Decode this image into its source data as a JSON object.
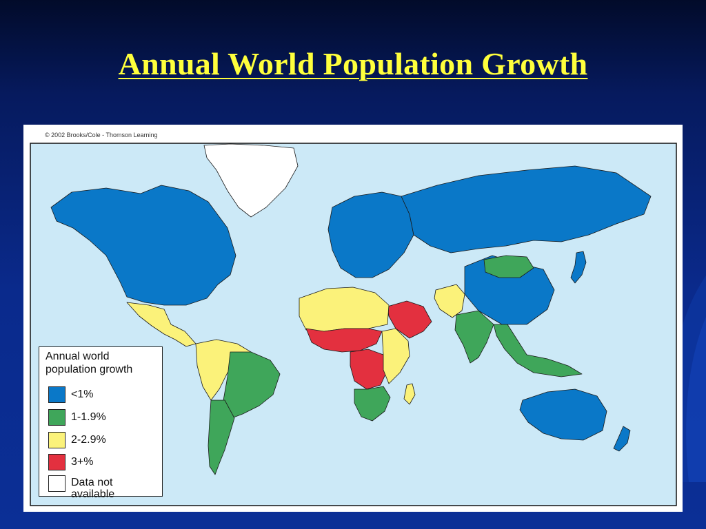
{
  "slide": {
    "title": "Annual World Population Growth"
  },
  "map": {
    "credit": "© 2002 Brooks/Cole - Thomson Learning",
    "ocean_color": "#cce9f7",
    "border_color": "#1a1a1a",
    "legend": {
      "title": "Annual world population growth",
      "items": [
        {
          "label": "<1%",
          "color": "#0a78c8"
        },
        {
          "label": "1-1.9%",
          "color": "#3fa65a"
        },
        {
          "label": "2-2.9%",
          "color": "#fbf27a"
        },
        {
          "label": "3+%",
          "color": "#e3303f"
        },
        {
          "label": "Data not available",
          "color": "#ffffff"
        }
      ]
    },
    "regions": [
      {
        "name": "North America",
        "category": "<1%"
      },
      {
        "name": "Greenland",
        "category": "Data not available"
      },
      {
        "name": "Mexico and Central America",
        "category": "2-2.9%"
      },
      {
        "name": "South America (north)",
        "category": "2-2.9%"
      },
      {
        "name": "Brazil",
        "category": "1-1.9%"
      },
      {
        "name": "Argentina and Chile",
        "category": "1-1.9%"
      },
      {
        "name": "Europe",
        "category": "<1%"
      },
      {
        "name": "Russia",
        "category": "<1%"
      },
      {
        "name": "China",
        "category": "<1%"
      },
      {
        "name": "Mongolia",
        "category": "1-1.9%"
      },
      {
        "name": "India",
        "category": "1-1.9%"
      },
      {
        "name": "Southeast Asia",
        "category": "1-1.9%"
      },
      {
        "name": "Pakistan and Afghanistan",
        "category": "2-2.9%"
      },
      {
        "name": "Arabian Peninsula",
        "category": "3+%"
      },
      {
        "name": "North Africa",
        "category": "2-2.9%"
      },
      {
        "name": "West Africa (Sahel)",
        "category": "3+%"
      },
      {
        "name": "Central Africa",
        "category": "3+%"
      },
      {
        "name": "East Africa",
        "category": "2-2.9%"
      },
      {
        "name": "Southern Africa",
        "category": "1-1.9%"
      },
      {
        "name": "Australia",
        "category": "<1%"
      },
      {
        "name": "New Zealand",
        "category": "<1%"
      },
      {
        "name": "Japan",
        "category": "<1%"
      },
      {
        "name": "Madagascar",
        "category": "2-2.9%"
      }
    ]
  }
}
